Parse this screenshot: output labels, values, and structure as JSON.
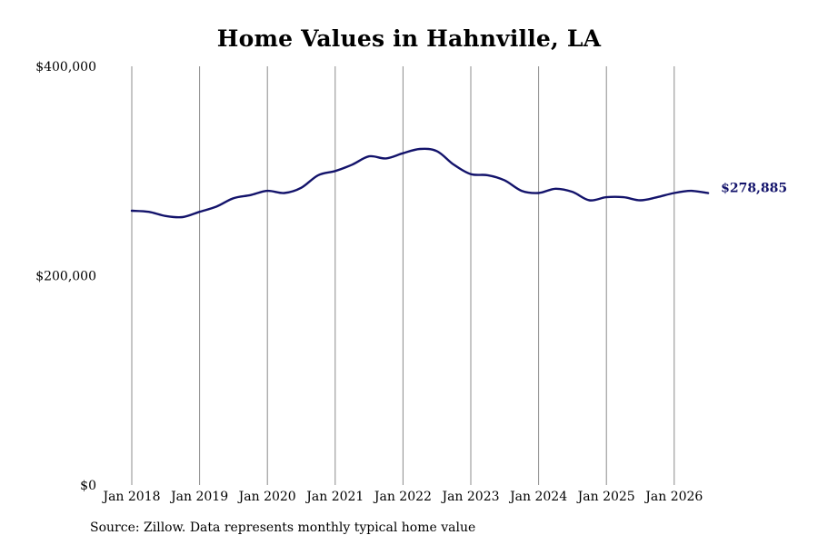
{
  "chart_data": {
    "type": "line",
    "title": "Home Values in Hahnville, LA",
    "xlabel": "",
    "ylabel": "",
    "ylim": [
      0,
      400000
    ],
    "y_ticks": [
      0,
      200000,
      400000
    ],
    "y_tick_labels": [
      "$0",
      "$200,000",
      "$400,000"
    ],
    "x_tick_labels": [
      "Jan 2018",
      "Jan 2019",
      "Jan 2020",
      "Jan 2021",
      "Jan 2022",
      "Jan 2023",
      "Jan 2024",
      "Jan 2025",
      "Jan 2026"
    ],
    "x_range": [
      "2018-01",
      "2026-07"
    ],
    "grid": "vertical",
    "line_color": "#13136b",
    "end_label": "$278,885",
    "series": [
      {
        "x": [
          "2018-01",
          "2018-04",
          "2018-07",
          "2018-10",
          "2019-01",
          "2019-04",
          "2019-07",
          "2019-10",
          "2020-01",
          "2020-04",
          "2020-07",
          "2020-10",
          "2021-01",
          "2021-04",
          "2021-07",
          "2021-10",
          "2022-01",
          "2022-04",
          "2022-07",
          "2022-10",
          "2023-01",
          "2023-04",
          "2023-07",
          "2023-10",
          "2024-01",
          "2024-04",
          "2024-07",
          "2024-10",
          "2025-01",
          "2025-04",
          "2025-07",
          "2025-10",
          "2026-01",
          "2026-04",
          "2026-07"
        ],
        "values": [
          262000,
          261000,
          257000,
          256000,
          261000,
          266000,
          274000,
          277000,
          281000,
          279000,
          284000,
          296000,
          300000,
          306000,
          314000,
          312000,
          317000,
          321000,
          319000,
          306000,
          297000,
          296000,
          291000,
          281000,
          279000,
          283000,
          280000,
          272000,
          275000,
          275000,
          272000,
          275000,
          279000,
          281000,
          278885
        ]
      }
    ]
  },
  "footer": {
    "source": "Source: Zillow. Data represents monthly typical home value"
  }
}
